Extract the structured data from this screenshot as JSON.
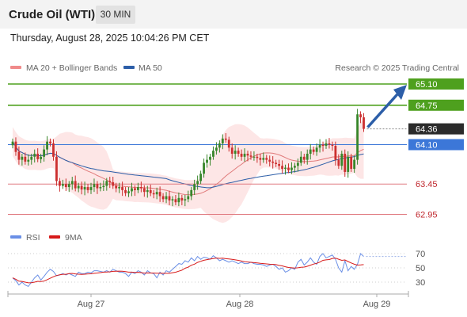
{
  "header": {
    "title": "Crude Oil (WTI)",
    "timeframe": "30 MIN"
  },
  "datetime": "Thursday, August 28, 2025 10:04:26 PM CET",
  "colors": {
    "resistance": "#4ea01e",
    "support": "#e07a80",
    "pivot": "#3c77d8",
    "current": "#2b2b2b",
    "ma20": "#e07a7a",
    "ma50": "#2c5ea8",
    "band_fill": "#fde2e2",
    "bull": "#37862a",
    "bear": "#cc2f2f",
    "arrow": "#2c5ea8",
    "rsi": "#6a8fe6",
    "rsi_ma": "#d71a1a"
  },
  "chart_data": [
    {
      "type": "candlestick",
      "legend": [
        {
          "label": "MA 20 + Bollinger Bands",
          "color": "#e07a7a"
        },
        {
          "label": "MA 50",
          "color": "#2c5ea8"
        }
      ],
      "watermark": "Research © 2025 Trading Central",
      "x_ticks": [
        "Aug 27",
        "Aug 28",
        "Aug 29"
      ],
      "levels": [
        {
          "value": 65.1,
          "label": "65.10",
          "kind": "resistance"
        },
        {
          "value": 64.75,
          "label": "64.75",
          "kind": "resistance"
        },
        {
          "value": 64.36,
          "label": "64.36",
          "kind": "current"
        },
        {
          "value": 64.1,
          "label": "64.10",
          "kind": "pivot"
        },
        {
          "value": 63.45,
          "label": "63.45",
          "kind": "support"
        },
        {
          "value": 62.95,
          "label": "62.95",
          "kind": "support"
        }
      ],
      "closes": [
        64.15,
        63.98,
        63.85,
        63.9,
        63.82,
        63.85,
        63.9,
        63.95,
        63.86,
        63.9,
        64.02,
        64.15,
        64.12,
        63.9,
        63.5,
        63.42,
        63.45,
        63.4,
        63.45,
        63.5,
        63.38,
        63.42,
        63.36,
        63.4,
        63.35,
        63.4,
        63.45,
        63.38,
        63.4,
        63.42,
        63.5,
        63.48,
        63.42,
        63.38,
        63.4,
        63.35,
        63.3,
        63.33,
        63.38,
        63.35,
        63.4,
        63.38,
        63.32,
        63.35,
        63.3,
        63.28,
        63.32,
        63.25,
        63.2,
        63.25,
        63.18,
        63.2,
        63.15,
        63.22,
        63.18,
        63.2,
        63.25,
        63.35,
        63.45,
        63.5,
        63.62,
        63.8,
        63.85,
        63.9,
        64.0,
        64.05,
        64.12,
        64.2,
        64.18,
        64.05,
        63.95,
        64.0,
        63.95,
        63.9,
        63.95,
        63.92,
        63.9,
        63.9,
        63.88,
        63.85,
        63.88,
        63.85,
        63.82,
        63.8,
        63.78,
        63.75,
        63.7,
        63.72,
        63.68,
        63.72,
        63.75,
        63.8,
        63.9,
        63.85,
        63.95,
        64.02,
        63.98,
        64.05,
        64.1,
        64.08,
        64.12,
        64.1,
        64.08,
        63.85,
        63.75,
        63.95,
        63.65,
        63.9,
        63.7,
        63.85,
        64.6,
        64.55,
        64.36
      ],
      "rsi": {
        "label": "RSI",
        "ma_label": "9MA",
        "ticks": [
          70,
          50,
          30
        ],
        "values": [
          36,
          32,
          26,
          30,
          26,
          24,
          30,
          36,
          40,
          33,
          38,
          44,
          48,
          45,
          39,
          40,
          42,
          40,
          42,
          40,
          38,
          44,
          42,
          42,
          44,
          43,
          46,
          46,
          45,
          44,
          46,
          44,
          48,
          46,
          44,
          44,
          42,
          38,
          44,
          42,
          46,
          44,
          40,
          46,
          43,
          42,
          36,
          44,
          40,
          46,
          44,
          48,
          52,
          56,
          55,
          60,
          58,
          64,
          60,
          66,
          62,
          65,
          64,
          62,
          67,
          64,
          60,
          62,
          60,
          58,
          60,
          58,
          56,
          58,
          56,
          56,
          58,
          56,
          55,
          55,
          54,
          52,
          54,
          55,
          52,
          48,
          50,
          44,
          46,
          50,
          48,
          58,
          62,
          54,
          58,
          64,
          58,
          55,
          66,
          70,
          64,
          66,
          68,
          62,
          50,
          44,
          60,
          46,
          52,
          48,
          55,
          70,
          66
        ]
      }
    }
  ]
}
